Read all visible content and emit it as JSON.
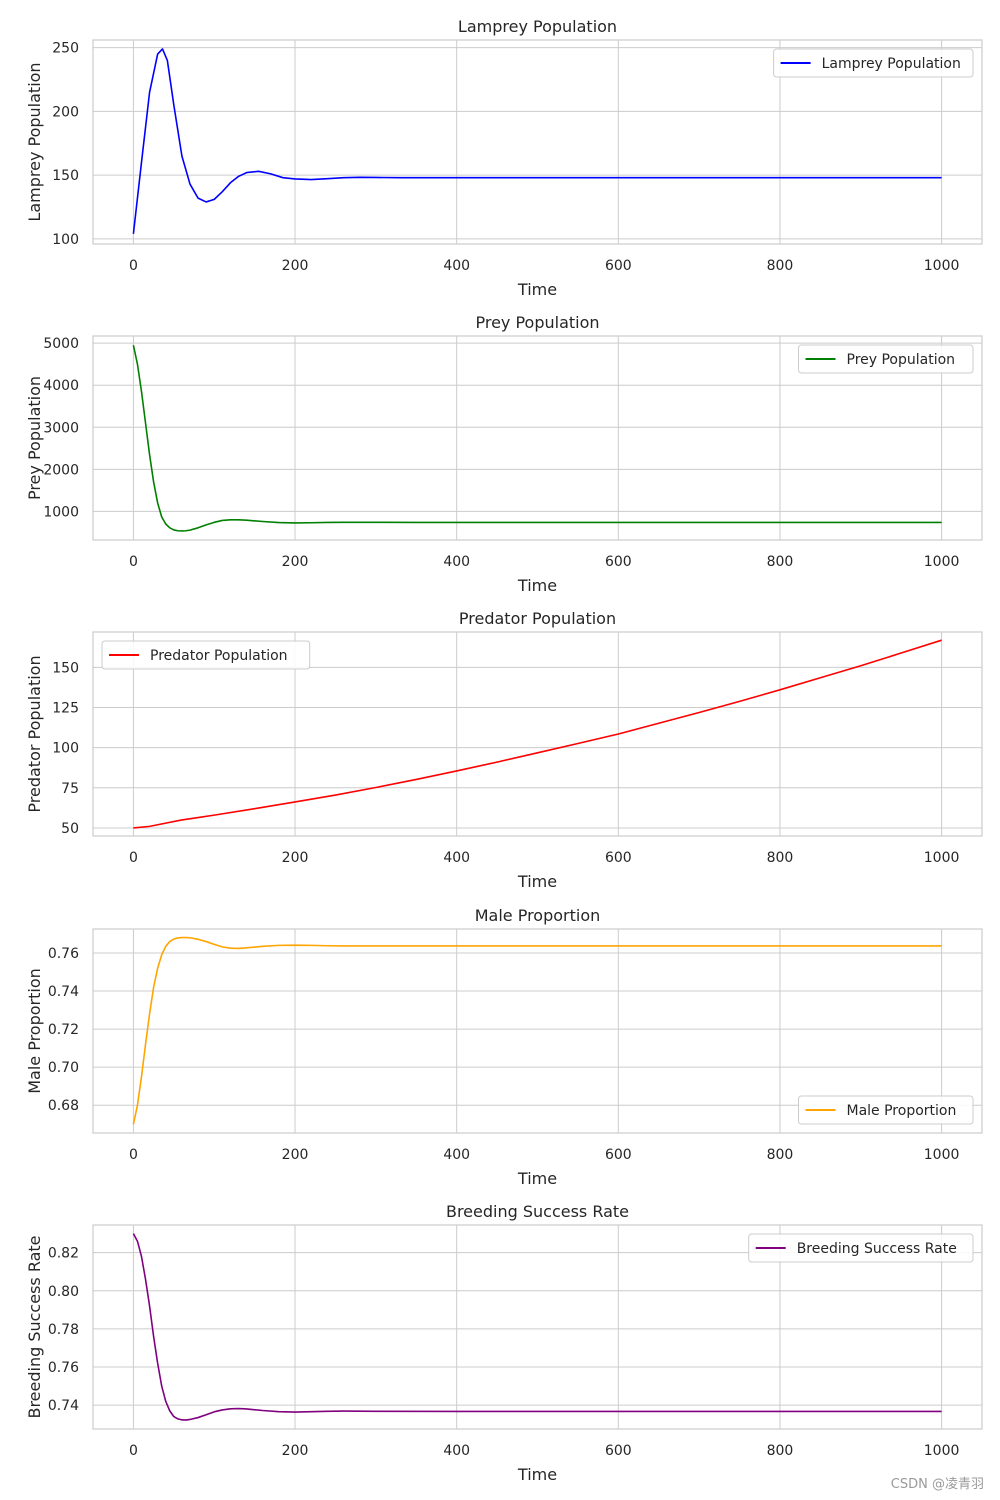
{
  "watermark": "CSDN @凌青羽",
  "chart_data": [
    {
      "type": "line",
      "title": "Lamprey Population",
      "xlabel": "Time",
      "ylabel": "Lamprey Population",
      "xlim": [
        -50,
        1050
      ],
      "ylim": [
        96,
        256
      ],
      "xticks": [
        0,
        200,
        400,
        600,
        800,
        1000
      ],
      "yticks": [
        100,
        150,
        200,
        250
      ],
      "grid": true,
      "legend_position": "top-right",
      "series": [
        {
          "name": "Lamprey Population",
          "color": "#0000ff",
          "x": [
            0,
            10,
            20,
            30,
            36,
            42,
            50,
            60,
            70,
            80,
            90,
            100,
            110,
            120,
            130,
            140,
            155,
            170,
            185,
            200,
            220,
            240,
            260,
            280,
            300,
            330,
            400,
            500,
            600,
            700,
            800,
            900,
            1000
          ],
          "y": [
            104,
            160,
            215,
            245,
            249,
            240,
            205,
            165,
            143,
            132,
            129,
            131,
            137,
            144,
            149,
            152,
            153,
            151,
            148,
            147,
            146.5,
            147.2,
            148,
            148.3,
            148.2,
            148,
            148,
            148,
            148,
            148,
            148,
            148,
            148
          ]
        }
      ]
    },
    {
      "type": "line",
      "title": "Prey Population",
      "xlabel": "Time",
      "ylabel": "Prey Population",
      "xlim": [
        -50,
        1050
      ],
      "ylim": [
        320,
        5170
      ],
      "xticks": [
        0,
        200,
        400,
        600,
        800,
        1000
      ],
      "yticks": [
        1000,
        2000,
        3000,
        4000,
        5000
      ],
      "grid": true,
      "legend_position": "top-right",
      "series": [
        {
          "name": "Prey Population",
          "color": "#008000",
          "x": [
            0,
            5,
            10,
            15,
            20,
            25,
            30,
            35,
            40,
            45,
            50,
            55,
            60,
            65,
            70,
            80,
            90,
            100,
            110,
            120,
            130,
            140,
            160,
            180,
            200,
            220,
            240,
            260,
            300,
            350,
            400,
            500,
            600,
            700,
            800,
            900,
            1000
          ],
          "y": [
            4950,
            4500,
            3850,
            3100,
            2350,
            1700,
            1200,
            870,
            700,
            610,
            560,
            540,
            535,
            540,
            555,
            610,
            680,
            740,
            785,
            800,
            800,
            790,
            760,
            735,
            725,
            730,
            738,
            740,
            740,
            738,
            737,
            737,
            737,
            737,
            737,
            737,
            737
          ]
        }
      ]
    },
    {
      "type": "line",
      "title": "Predator Population",
      "xlabel": "Time",
      "ylabel": "Predator Population",
      "xlim": [
        -50,
        1050
      ],
      "ylim": [
        45,
        172
      ],
      "xticks": [
        0,
        200,
        400,
        600,
        800,
        1000
      ],
      "yticks": [
        50,
        75,
        100,
        125,
        150
      ],
      "grid": true,
      "legend_position": "top-left",
      "series": [
        {
          "name": "Predator Population",
          "color": "#ff0000",
          "x": [
            0,
            20,
            40,
            60,
            80,
            100,
            150,
            200,
            250,
            300,
            350,
            400,
            450,
            500,
            550,
            600,
            650,
            700,
            750,
            800,
            850,
            900,
            950,
            1000
          ],
          "y": [
            50,
            51,
            53,
            55,
            56.5,
            58,
            62,
            66.2,
            70.5,
            75.2,
            80.2,
            85.5,
            91,
            96.8,
            102.6,
            108.5,
            115.2,
            121.9,
            128.8,
            136,
            143.5,
            151,
            158.9,
            166.9
          ]
        }
      ]
    },
    {
      "type": "line",
      "title": "Male Proportion",
      "xlabel": "Time",
      "ylabel": "Male Proportion",
      "xlim": [
        -50,
        1050
      ],
      "ylim": [
        0.6654,
        0.7726
      ],
      "xticks": [
        0,
        200,
        400,
        600,
        800,
        1000
      ],
      "yticks": [
        0.68,
        0.7,
        0.72,
        0.74,
        0.76
      ],
      "grid": true,
      "legend_position": "bottom-right",
      "series": [
        {
          "name": "Male Proportion",
          "color": "#ffa500",
          "x": [
            0,
            5,
            10,
            15,
            20,
            25,
            30,
            35,
            40,
            45,
            50,
            55,
            60,
            65,
            70,
            80,
            90,
            100,
            110,
            120,
            130,
            140,
            160,
            180,
            200,
            220,
            240,
            260,
            300,
            400,
            500,
            600,
            700,
            800,
            900,
            1000
          ],
          "y": [
            0.67,
            0.68,
            0.695,
            0.712,
            0.728,
            0.742,
            0.752,
            0.759,
            0.7635,
            0.766,
            0.7673,
            0.7679,
            0.7681,
            0.7681,
            0.768,
            0.7672,
            0.766,
            0.7645,
            0.7632,
            0.7625,
            0.7624,
            0.7627,
            0.7635,
            0.764,
            0.7641,
            0.764,
            0.7638,
            0.7637,
            0.7637,
            0.7637,
            0.7637,
            0.7637,
            0.7637,
            0.7637,
            0.7637,
            0.7637
          ]
        }
      ]
    },
    {
      "type": "line",
      "title": "Breeding Success Rate",
      "xlabel": "Time",
      "ylabel": "Breeding Success Rate",
      "xlim": [
        -50,
        1050
      ],
      "ylim": [
        0.7275,
        0.8345
      ],
      "xticks": [
        0,
        200,
        400,
        600,
        800,
        1000
      ],
      "yticks": [
        0.74,
        0.76,
        0.78,
        0.8,
        0.82
      ],
      "grid": true,
      "legend_position": "top-right",
      "series": [
        {
          "name": "Breeding Success Rate",
          "color": "#800080",
          "x": [
            0,
            5,
            10,
            15,
            20,
            25,
            30,
            35,
            40,
            45,
            50,
            55,
            60,
            65,
            70,
            80,
            90,
            100,
            110,
            120,
            130,
            140,
            160,
            180,
            200,
            220,
            240,
            260,
            300,
            400,
            500,
            600,
            700,
            800,
            900,
            1000
          ],
          "y": [
            0.83,
            0.826,
            0.818,
            0.806,
            0.792,
            0.776,
            0.762,
            0.75,
            0.742,
            0.737,
            0.734,
            0.7328,
            0.7323,
            0.7322,
            0.7325,
            0.7335,
            0.735,
            0.7365,
            0.7375,
            0.7381,
            0.7382,
            0.738,
            0.7372,
            0.7366,
            0.7364,
            0.7366,
            0.7368,
            0.7369,
            0.7368,
            0.7367,
            0.7367,
            0.7367,
            0.7367,
            0.7367,
            0.7367,
            0.7367
          ]
        }
      ]
    }
  ]
}
